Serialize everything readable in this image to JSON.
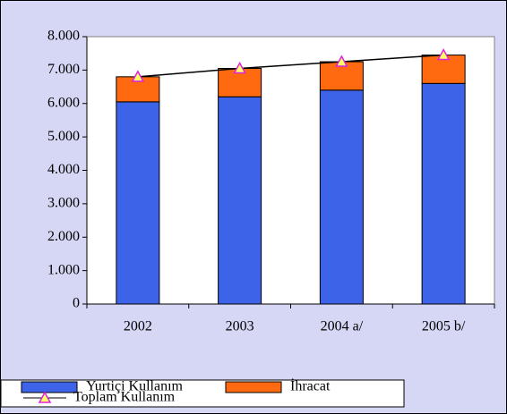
{
  "chart_data": {
    "type": "bar",
    "stacked": true,
    "categories": [
      "2002",
      "2003",
      "2004 a/",
      "2005 b/"
    ],
    "series": [
      {
        "name": "Yurtiçi Kullanım",
        "color": "#3d63e8",
        "values": [
          6050,
          6200,
          6400,
          6600
        ]
      },
      {
        "name": "İhracat",
        "color": "#ff6a10",
        "values": [
          750,
          850,
          850,
          850
        ]
      },
      {
        "name": "Toplam Kullanım",
        "type": "line",
        "color": "#000000",
        "marker_color": "#e020e0",
        "values": [
          6800,
          7050,
          7250,
          7450
        ]
      }
    ],
    "ylim": [
      0,
      8000
    ],
    "yticks": [
      0,
      {
        "value": 1000,
        "label": "1.000"
      },
      {
        "value": 2000,
        "label": "2.000"
      },
      {
        "value": 3000,
        "label": "3.000"
      },
      {
        "value": 4000,
        "label": "4.000"
      },
      {
        "value": 5000,
        "label": "5.000"
      },
      {
        "value": 6000,
        "label": "6.000"
      },
      {
        "value": 7000,
        "label": "7.000"
      },
      {
        "value": 8000,
        "label": "8.000"
      }
    ],
    "legend": "bottom-left"
  }
}
